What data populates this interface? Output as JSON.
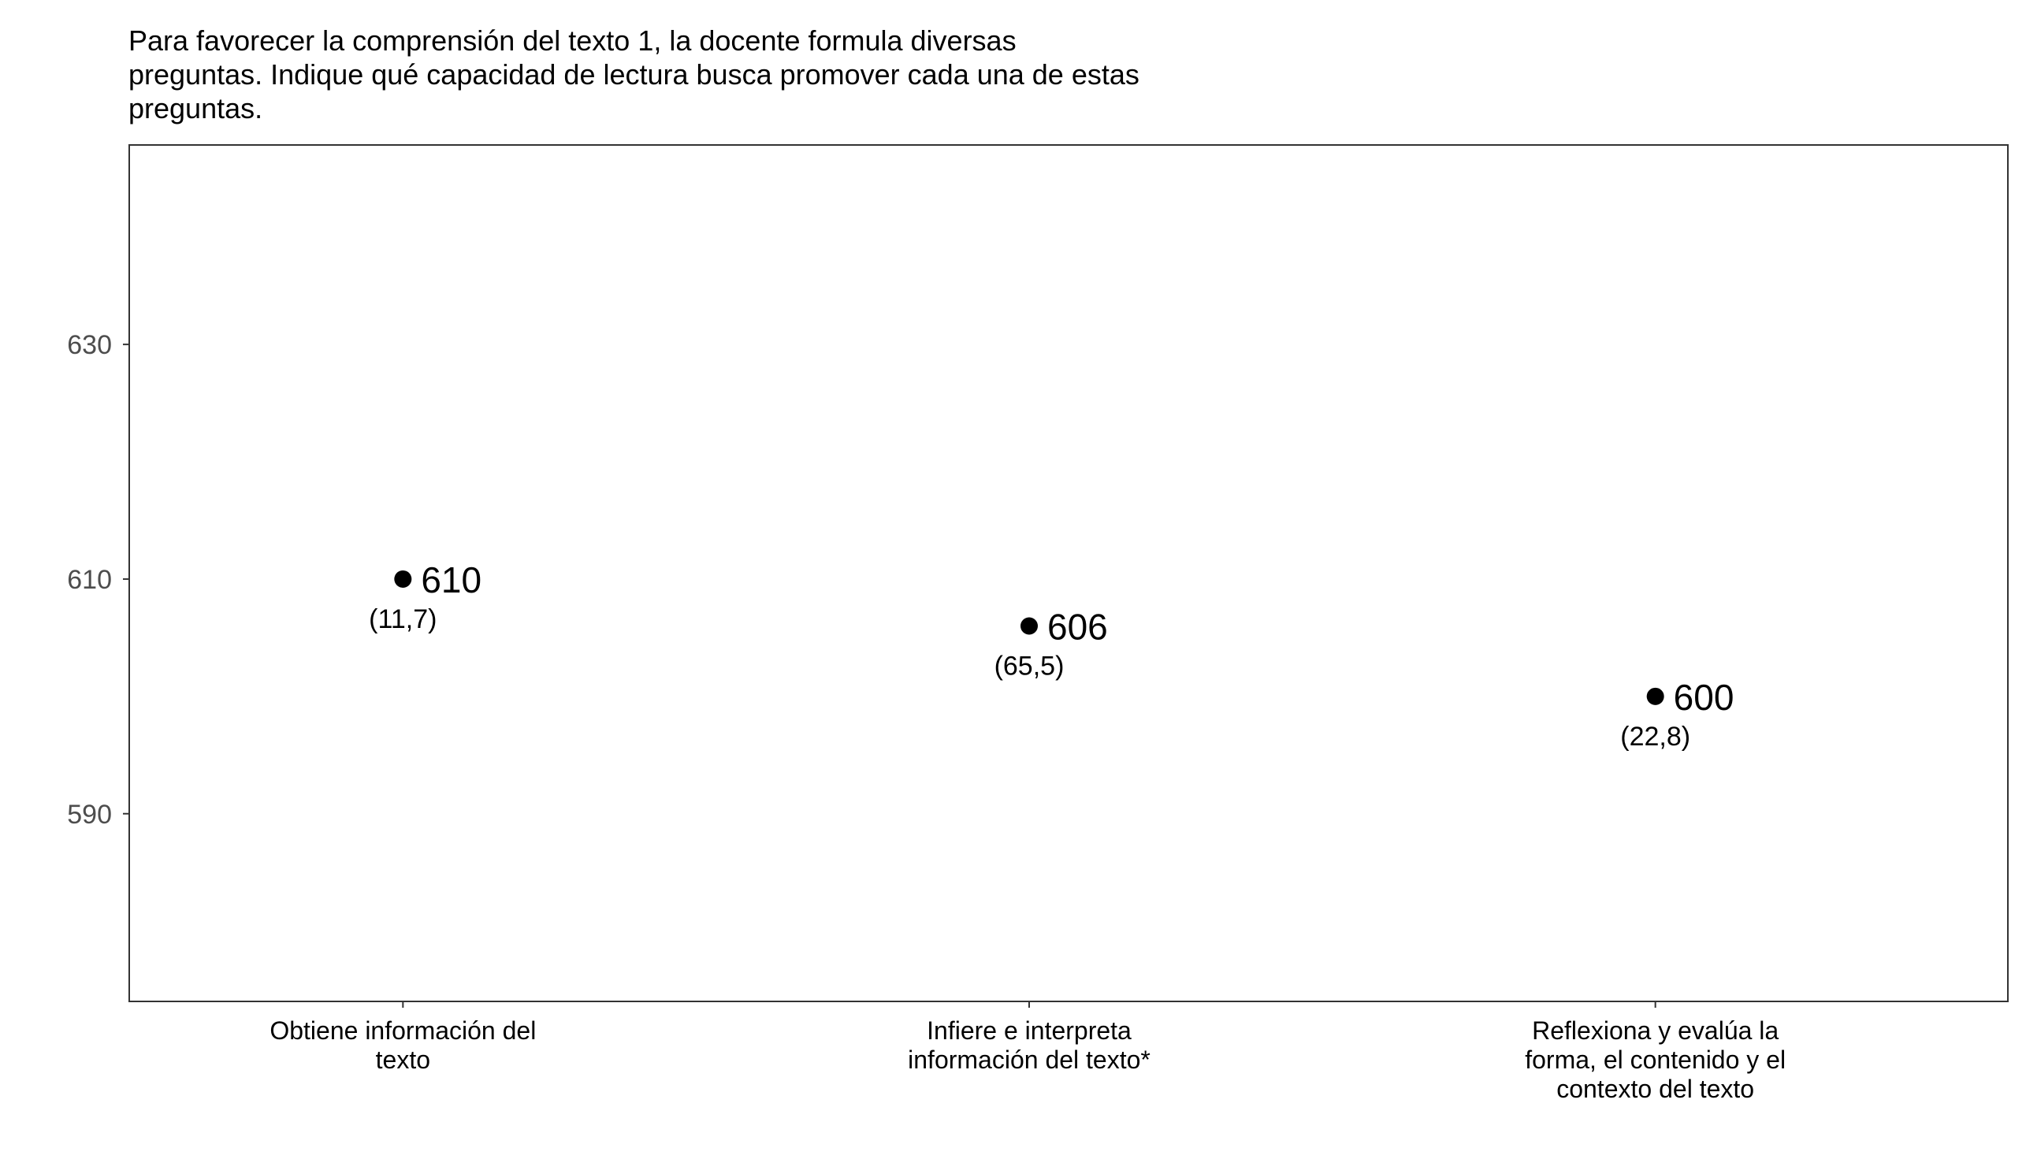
{
  "chart_data": {
    "type": "scatter",
    "title_lines": [
      "Para favorecer la comprensión del texto 1, la docente formula diversas",
      "preguntas. Indique qué capacidad de lectura busca promover cada una de estas",
      "preguntas."
    ],
    "xlabel": "",
    "ylabel": "",
    "ylim": [
      574,
      647
    ],
    "yticks": [
      590,
      610,
      630
    ],
    "grid": false,
    "categories": [
      {
        "label_lines": [
          "Obtiene información del",
          "texto"
        ],
        "value": 610,
        "value_label": "610",
        "se_label": "(11,7)"
      },
      {
        "label_lines": [
          "Infiere e interpreta",
          "información del texto*"
        ],
        "value": 606,
        "value_label": "606",
        "se_label": "(65,5)"
      },
      {
        "label_lines": [
          "Reflexiona y evalúa la",
          "forma, el contenido y el",
          "contexto del texto"
        ],
        "value": 600,
        "value_label": "600",
        "se_label": "(22,8)"
      }
    ],
    "colors": {
      "point": "#000000",
      "frame": "#333333",
      "tick_text": "#4d4d4d"
    }
  }
}
